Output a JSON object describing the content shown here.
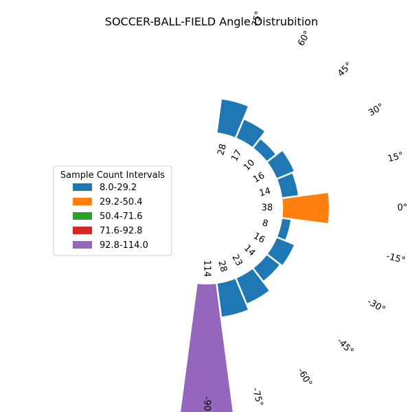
{
  "chart_data": {
    "type": "polar-bar",
    "title": "SOCCER-BALL-FIELD Angle Distrubition",
    "angles": [
      75,
      60,
      45,
      30,
      15,
      0,
      -15,
      -30,
      -45,
      -60,
      -75,
      -90
    ],
    "angle_tick_labels": [
      "75°",
      "60°",
      "45°",
      "30°",
      "15°",
      "0°",
      "-15°",
      "-30°",
      "-45°",
      "-60°",
      "-75°",
      "-90"
    ],
    "values": [
      28,
      17,
      10,
      16,
      14,
      38,
      8,
      16,
      14,
      23,
      28,
      114
    ],
    "value_labels": [
      "28",
      "17",
      "10",
      "16",
      "14",
      "38",
      "8",
      "16",
      "14",
      "23",
      "28",
      "114"
    ],
    "bar_interval_index": [
      0,
      0,
      0,
      0,
      0,
      1,
      0,
      0,
      0,
      0,
      0,
      4
    ],
    "legend": {
      "title": "Sample Count Intervals",
      "placement": "center-left",
      "items": [
        {
          "label": "8.0-29.2",
          "color": "#1f77b4"
        },
        {
          "label": "29.2-50.4",
          "color": "#ff7f0e"
        },
        {
          "label": "50.4-71.6",
          "color": "#2ca02c"
        },
        {
          "label": "71.6-92.8",
          "color": "#d62728"
        },
        {
          "label": "92.8-114.0",
          "color": "#9467bd"
        }
      ]
    }
  }
}
